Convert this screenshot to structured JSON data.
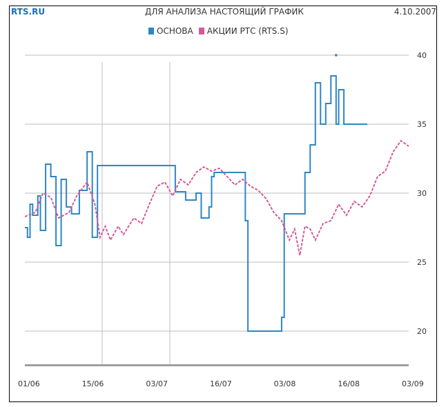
{
  "header": {
    "brand": "RTS.RU",
    "title": "ДЛЯ АНАЛИЗА НАСТОЯЩИЙ ГРАФИК",
    "date": "4.10.2007"
  },
  "chart_data": {
    "type": "line",
    "title": "",
    "xlabel": "",
    "ylabel": "",
    "x_ticks": [
      "01/06",
      "15/06",
      "03/07",
      "16/07",
      "03/08",
      "16/08",
      "03/09"
    ],
    "y_ticks": [
      20,
      25,
      30,
      35,
      40
    ],
    "ylim": [
      18,
      41
    ],
    "grid": true,
    "legend_position": "top",
    "series": [
      {
        "name": "ОСНОВА",
        "color": "#2b86c5",
        "style": "solid",
        "points": [
          [
            0,
            27.5
          ],
          [
            1,
            26.8
          ],
          [
            2,
            29.2
          ],
          [
            3,
            28.4
          ],
          [
            5,
            29.8
          ],
          [
            6,
            27.3
          ],
          [
            8,
            32.1
          ],
          [
            10,
            31.2
          ],
          [
            12,
            26.2
          ],
          [
            14,
            31.0
          ],
          [
            16,
            29.0
          ],
          [
            18,
            28.5
          ],
          [
            21,
            30.2
          ],
          [
            24,
            33.0
          ],
          [
            26,
            26.8
          ],
          [
            28,
            32.0
          ],
          [
            31,
            32.0
          ],
          [
            40,
            32.0
          ],
          [
            48,
            32.0
          ],
          [
            52,
            32.0
          ],
          [
            56,
            32.0
          ],
          [
            58,
            30.1
          ],
          [
            62,
            29.5
          ],
          [
            66,
            30.0
          ],
          [
            68,
            28.2
          ],
          [
            71,
            29.0
          ],
          [
            72,
            31.2
          ],
          [
            73,
            31.5
          ],
          [
            76,
            31.5
          ],
          [
            80,
            31.5
          ],
          [
            83,
            31.5
          ],
          [
            85,
            28.0
          ],
          [
            86,
            20.0
          ],
          [
            90,
            20.0
          ],
          [
            96,
            20.0
          ],
          [
            98,
            20.0
          ],
          [
            99,
            21.0
          ],
          [
            100,
            28.5
          ],
          [
            102,
            28.5
          ],
          [
            106,
            28.5
          ],
          [
            108,
            31.5
          ],
          [
            110,
            33.5
          ],
          [
            112,
            38.0
          ],
          [
            114,
            35.0
          ],
          [
            116,
            36.5
          ],
          [
            118,
            38.5
          ],
          [
            120,
            35.0
          ],
          [
            121,
            37.5
          ],
          [
            123,
            35.0
          ],
          [
            127,
            35.0
          ],
          [
            130,
            35.0
          ],
          [
            132,
            35.0
          ]
        ]
      },
      {
        "name": "АКЦИИ РТС (RTS.S)",
        "color": "#d45a96",
        "style": "dashed",
        "points": [
          [
            0,
            28.3
          ],
          [
            4,
            28.6
          ],
          [
            7,
            30.0
          ],
          [
            10,
            29.7
          ],
          [
            13,
            28.2
          ],
          [
            17,
            28.6
          ],
          [
            20,
            29.8
          ],
          [
            24,
            30.8
          ],
          [
            27,
            29.2
          ],
          [
            29,
            26.8
          ],
          [
            31,
            27.6
          ],
          [
            33,
            26.6
          ],
          [
            36,
            27.6
          ],
          [
            38,
            27.0
          ],
          [
            42,
            28.2
          ],
          [
            45,
            27.8
          ],
          [
            48,
            29.2
          ],
          [
            51,
            30.5
          ],
          [
            54,
            30.8
          ],
          [
            57,
            29.8
          ],
          [
            60,
            31.0
          ],
          [
            63,
            30.6
          ],
          [
            66,
            31.5
          ],
          [
            69,
            31.9
          ],
          [
            72,
            31.6
          ],
          [
            75,
            31.8
          ],
          [
            78,
            31.2
          ],
          [
            81,
            30.6
          ],
          [
            84,
            31.0
          ],
          [
            87,
            30.5
          ],
          [
            90,
            30.2
          ],
          [
            93,
            29.6
          ],
          [
            96,
            28.6
          ],
          [
            99,
            28.0
          ],
          [
            102,
            26.6
          ],
          [
            104,
            27.4
          ],
          [
            106,
            25.5
          ],
          [
            108,
            27.6
          ],
          [
            110,
            27.4
          ],
          [
            112,
            26.6
          ],
          [
            115,
            27.8
          ],
          [
            118,
            28.0
          ],
          [
            121,
            29.2
          ],
          [
            124,
            28.4
          ],
          [
            127,
            29.4
          ],
          [
            130,
            29.0
          ],
          [
            133,
            29.8
          ],
          [
            136,
            31.2
          ],
          [
            139,
            31.6
          ],
          [
            142,
            33.0
          ],
          [
            145,
            33.8
          ],
          [
            148,
            33.4
          ]
        ]
      }
    ]
  }
}
